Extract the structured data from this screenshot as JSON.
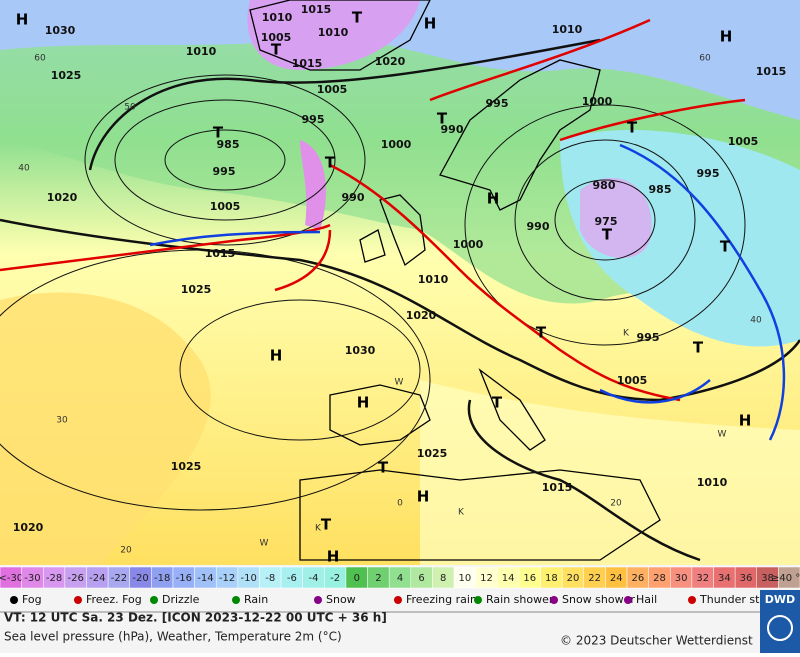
{
  "map": {
    "pressure_labels": [
      "1015",
      "1010",
      "1010",
      "1005",
      "1020",
      "1015",
      "1010",
      "1030",
      "1025",
      "1005",
      "995",
      "985",
      "995",
      "1005",
      "990",
      "1000",
      "990",
      "995",
      "1000",
      "1010",
      "1015",
      "1005",
      "995",
      "985",
      "980",
      "975",
      "990",
      "1000",
      "1010",
      "1020",
      "1015",
      "1025",
      "1020",
      "1030",
      "995",
      "1005",
      "1025",
      "1015",
      "1010",
      "1025",
      "1020"
    ],
    "centers": [
      "H",
      "T",
      "T",
      "H",
      "H",
      "T",
      "T",
      "T",
      "T",
      "H",
      "T",
      "T",
      "T",
      "H",
      "H",
      "T",
      "T",
      "H",
      "T",
      "H",
      "H",
      "T"
    ],
    "grid_labels": [
      "60",
      "50",
      "40",
      "30",
      "20",
      "60",
      "40",
      "0",
      "20"
    ],
    "symbols": [
      "W",
      "W",
      "K",
      "K",
      "W",
      "K"
    ]
  },
  "scale": {
    "labels": [
      "<-30",
      "-30",
      "-28",
      "-26",
      "-24",
      "-22",
      "-20",
      "-18",
      "-16",
      "-14",
      "-12",
      "-10",
      "-8",
      "-6",
      "-4",
      "-2",
      "0",
      "2",
      "4",
      "6",
      "8",
      "10",
      "12",
      "14",
      "16",
      "18",
      "20",
      "22",
      "24",
      "26",
      "28",
      "30",
      "32",
      "34",
      "36",
      "38",
      "≥40 °C"
    ],
    "colors": [
      "#e070e0",
      "#e088e8",
      "#d898f0",
      "#c8a0f0",
      "#b8a0f0",
      "#a8a8f0",
      "#8888e8",
      "#90a0f0",
      "#98b0f8",
      "#a0c0f8",
      "#a8d0f8",
      "#b0e0f8",
      "#b8f0f8",
      "#a8f0f0",
      "#a0f0e8",
      "#98f0e0",
      "#50c050",
      "#70d070",
      "#90e090",
      "#b0e8a0",
      "#d0f0b0",
      "#fffff0",
      "#ffffd0",
      "#ffffb0",
      "#ffff90",
      "#fff070",
      "#ffe060",
      "#ffd050",
      "#ffc040",
      "#ffb060",
      "#ffa070",
      "#f89080",
      "#f08080",
      "#e87070",
      "#e06868",
      "#c86060",
      "#c0a090"
    ]
  },
  "legend": [
    "Fog",
    "Freez. Fog",
    "Drizzle",
    "Rain",
    "Snow",
    "Freezing rain",
    "Rain shower",
    "Snow shower",
    "Hail",
    "Thunder storm"
  ],
  "footer": {
    "valid_time": "VT: 12 UTC Sa.  23 Dez. [ICON 2023-12-22  00 UTC + 36 h]",
    "description": "Sea level pressure (hPa), Weather, Temperature 2m (°C)",
    "copyright": "© 2023 Deutscher Wetterdienst",
    "logo": "DWD"
  }
}
